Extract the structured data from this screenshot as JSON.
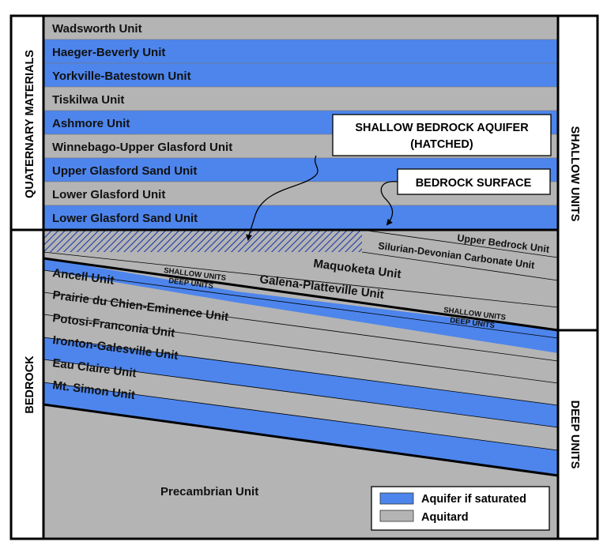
{
  "colors": {
    "aquifer": "#4d85ec",
    "aquitard": "#b4b4b4",
    "line": "#000000",
    "background": "#ffffff"
  },
  "side_labels": {
    "quaternary": "QUATERNARY MATERIALS",
    "bedrock": "BEDROCK",
    "shallow": "SHALLOW UNITS",
    "deep": "DEEP UNITS"
  },
  "quaternary_units": [
    {
      "name": "Wadsworth Unit",
      "type": "aquitard"
    },
    {
      "name": "Haeger-Beverly Unit",
      "type": "aquifer"
    },
    {
      "name": "Yorkville-Batestown Unit",
      "type": "aquifer"
    },
    {
      "name": "Tiskilwa Unit",
      "type": "aquitard"
    },
    {
      "name": "Ashmore Unit",
      "type": "aquifer"
    },
    {
      "name": "Winnebago-Upper Glasford Unit",
      "type": "aquitard"
    },
    {
      "name": "Upper Glasford Sand Unit",
      "type": "aquifer"
    },
    {
      "name": "Lower Glasford Unit",
      "type": "aquitard"
    },
    {
      "name": "Lower Glasford Sand Unit",
      "type": "aquifer"
    }
  ],
  "bedrock_units": {
    "upper_bedrock": "Upper Bedrock Unit",
    "silurian": "Silurian-Devonian Carbonate Unit",
    "maquoketa": "Maquoketa Unit",
    "galena": "Galena-Platteville Unit",
    "ancell": "Ancell Unit",
    "prairie": "Prairie du Chien-Eminence Unit",
    "potosi": "Potosi-Franconia Unit",
    "ironton": "Ironton-Galesville Unit",
    "eau_claire": "Eau Claire Unit",
    "mt_simon": "Mt. Simon Unit",
    "precambrian": "Precambrian Unit"
  },
  "boundary_labels": {
    "shallow": "SHALLOW UNITS",
    "deep": "DEEP UNITS"
  },
  "callouts": {
    "aquifer_line1": "SHALLOW BEDROCK AQUIFER",
    "aquifer_line2": "(HATCHED)",
    "surface": "BEDROCK SURFACE"
  },
  "legend": {
    "aquifer": "Aquifer if saturated",
    "aquitard": "Aquitard"
  }
}
